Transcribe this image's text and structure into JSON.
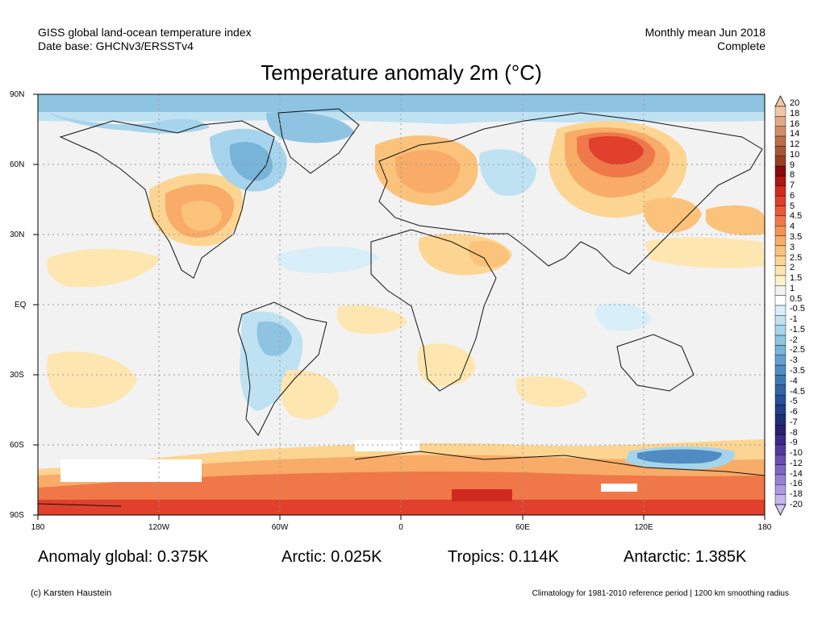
{
  "header": {
    "line1": "GISS global land-ocean temperature index",
    "line2": "Date base: GHCNv3/ERSSTv4",
    "period": "Monthly mean Jun 2018",
    "status": "Complete"
  },
  "title": "Temperature anomaly 2m (°C)",
  "latitude_labels": [
    "90N",
    "60N",
    "30N",
    "EQ",
    "30S",
    "60S",
    "90S"
  ],
  "longitude_labels": [
    "180",
    "120W",
    "60W",
    "0",
    "60E",
    "120E",
    "180"
  ],
  "colorbar": {
    "labels": [
      "20",
      "18",
      "16",
      "14",
      "12",
      "10",
      "9",
      "8",
      "7",
      "6",
      "5",
      "4.5",
      "4",
      "3.5",
      "3",
      "2.5",
      "2",
      "1.5",
      "1",
      "0.5",
      "-0.5",
      "-1",
      "-1.5",
      "-2",
      "-2.5",
      "-3",
      "-3.5",
      "-4",
      "-4.5",
      "-5",
      "-6",
      "-7",
      "-8",
      "-9",
      "-10",
      "-12",
      "-14",
      "-16",
      "-18",
      "-20"
    ],
    "colors": [
      "#f0c8a8",
      "#e0aa88",
      "#d08c68",
      "#bb6f4a",
      "#a85636",
      "#963e22",
      "#8b0a0a",
      "#b01414",
      "#d02a20",
      "#e0402c",
      "#ea5a38",
      "#f07848",
      "#f59455",
      "#f8ac68",
      "#fbc27c",
      "#fcd592",
      "#fde6b0",
      "#fff1cc",
      "#f2f2f2",
      "#ffffff",
      "#d8eef8",
      "#bfe2f3",
      "#a6d4ec",
      "#8ec4e2",
      "#78b3d8",
      "#63a0cd",
      "#508cc1",
      "#3f78b4",
      "#3264a6",
      "#275196",
      "#1f3f86",
      "#1e2f76",
      "#2a2070",
      "#3e2a86",
      "#54399c",
      "#6a4eb0",
      "#8066c2",
      "#977fd2",
      "#ae99e0",
      "#c6b4ec"
    ]
  },
  "stats": {
    "global": "Anomaly global: 0.375K",
    "arctic": "Arctic: 0.025K",
    "tropics": "Tropics: 0.114K",
    "antarctic": "Antarctic: 1.385K"
  },
  "footer": {
    "credit": "(c) Karsten Haustein",
    "note": "Climatology for 1981-2010 reference period | 1200 km smoothing radius"
  }
}
